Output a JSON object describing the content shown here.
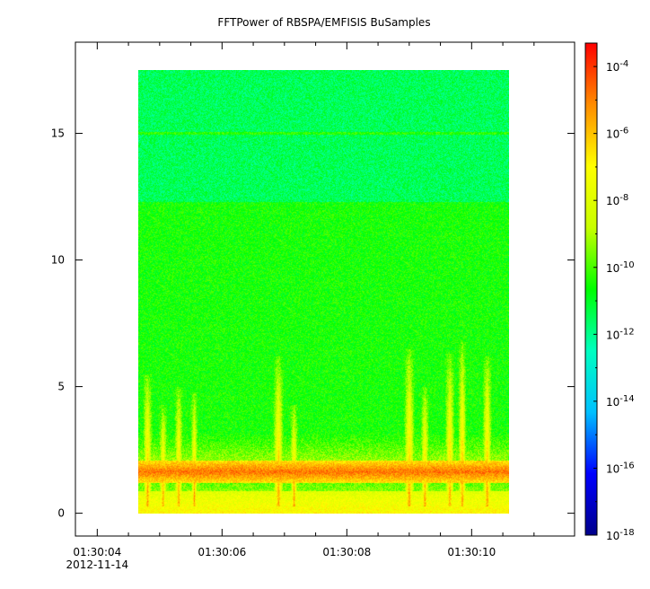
{
  "chart_data": {
    "type": "heatmap",
    "title": "FFTPower of RBSPA/EMFISIS  BuSamples",
    "xlabel": "",
    "ylabel": "",
    "x_ticks": [
      {
        "label": "01:30:04",
        "sublabel": "2012-11-14",
        "t": 4.0
      },
      {
        "label": "01:30:06",
        "sublabel": "",
        "t": 6.0
      },
      {
        "label": "01:30:08",
        "sublabel": "",
        "t": 8.0
      },
      {
        "label": "01:30:10",
        "sublabel": "",
        "t": 10.0
      }
    ],
    "x_minor_ticks": [
      4.5,
      5.0,
      5.5,
      6.5,
      7.0,
      7.5,
      8.5,
      9.0,
      9.5,
      10.5,
      11.0
    ],
    "xlim": [
      3.65,
      11.65
    ],
    "data_x_range": [
      4.65,
      10.6
    ],
    "y_ticks": [
      {
        "label": "0",
        "v": 0
      },
      {
        "label": "5",
        "v": 5
      },
      {
        "label": "10",
        "v": 10
      },
      {
        "label": "15",
        "v": 15
      }
    ],
    "ylim": [
      -0.9,
      18.6
    ],
    "data_y_range": [
      0,
      17.5
    ],
    "colorbar": {
      "scale": "log",
      "range": [
        -18,
        -3.3
      ],
      "tick_exponents": [
        -18,
        -16,
        -14,
        -12,
        -10,
        -8,
        -6,
        -4
      ],
      "tick_labels": [
        "10-18",
        "10-16",
        "10-14",
        "10-12",
        "10-10",
        "10-8",
        "10-6",
        "10-4"
      ],
      "colormap": [
        "#00008b",
        "#0000ff",
        "#00c0ff",
        "#00ffc0",
        "#00ff00",
        "#c8ff00",
        "#ffff00",
        "#ff8c00",
        "#ff0000"
      ]
    },
    "background_level_exponent": -10.5,
    "upper_band": {
      "y_range": [
        12.3,
        17.5
      ],
      "level_exponent": -11.5
    },
    "line_15": {
      "y": 15.0,
      "level_exponent": -10.3
    },
    "low_band": {
      "y_range": [
        1.2,
        2.1
      ],
      "level_exponent": -4.8
    },
    "bursts": [
      {
        "t": 4.8,
        "top": 5.5,
        "width": 0.08
      },
      {
        "t": 5.05,
        "top": 4.3,
        "width": 0.07
      },
      {
        "t": 5.3,
        "top": 5.0,
        "width": 0.07
      },
      {
        "t": 5.55,
        "top": 4.8,
        "width": 0.06
      },
      {
        "t": 6.9,
        "top": 6.2,
        "width": 0.09
      },
      {
        "t": 7.15,
        "top": 4.3,
        "width": 0.07
      },
      {
        "t": 9.0,
        "top": 6.5,
        "width": 0.09
      },
      {
        "t": 9.25,
        "top": 5.0,
        "width": 0.07
      },
      {
        "t": 9.65,
        "top": 6.3,
        "width": 0.08
      },
      {
        "t": 9.85,
        "top": 6.8,
        "width": 0.07
      },
      {
        "t": 10.25,
        "top": 6.2,
        "width": 0.08
      }
    ]
  }
}
